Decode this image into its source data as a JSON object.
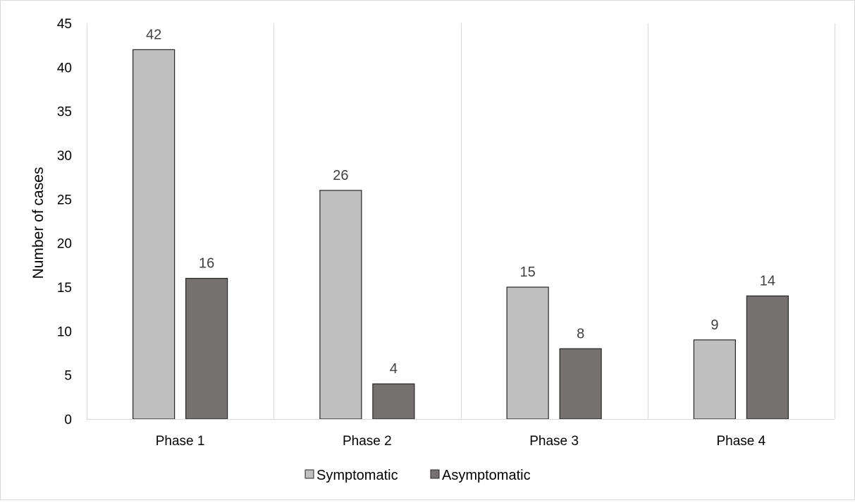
{
  "chart_data": {
    "type": "bar",
    "categories": [
      "Phase 1",
      "Phase 2",
      "Phase 3",
      "Phase 4"
    ],
    "series": [
      {
        "name": "Symptomatic",
        "values": [
          42,
          26,
          15,
          9
        ],
        "color": "#bfbfbf"
      },
      {
        "name": "Asymptomatic",
        "values": [
          16,
          4,
          8,
          14
        ],
        "color": "#767171"
      }
    ],
    "title": "",
    "xlabel": "",
    "ylabel": "Number of cases",
    "ylim": [
      0,
      45
    ],
    "yticks": [
      0,
      5,
      10,
      15,
      20,
      25,
      30,
      35,
      40,
      45
    ],
    "grid": "vertical category separators",
    "legend": "bottom",
    "data_labels": true
  }
}
